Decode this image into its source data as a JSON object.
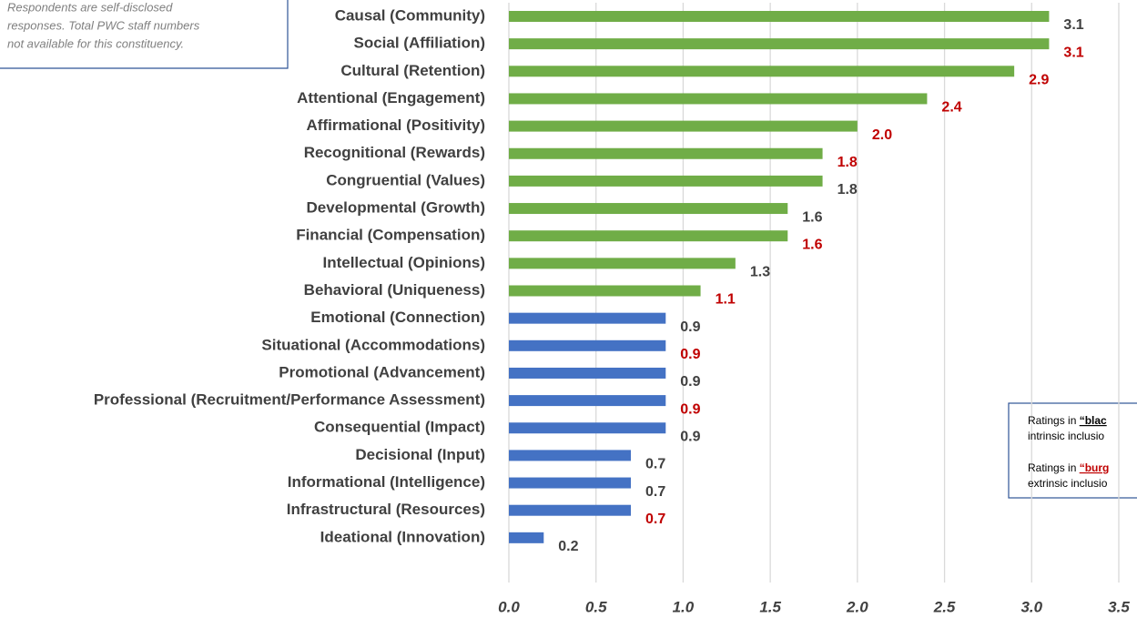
{
  "chart_data": {
    "type": "barh",
    "note": [
      "Respondents are self-disclosed",
      "responses. Total PWC staff numbers",
      "not available for this constituency."
    ],
    "legend_box": [
      {
        "lead": "Ratings in ",
        "key": "“blac",
        "key_color": "#000000",
        "next": "intrinsic inclusio"
      },
      {
        "lead": "Ratings in ",
        "key": "“burg",
        "key_color": "#c00000",
        "next": "extrinsic inclusio"
      }
    ],
    "categories": [
      "Causal (Community)",
      "Social (Affiliation)",
      "Cultural (Retention)",
      "Attentional (Engagement)",
      "Affirmational (Positivity)",
      "Recognitional (Rewards)",
      "Congruential (Values)",
      "Developmental (Growth)",
      "Financial (Compensation)",
      "Intellectual (Opinions)",
      "Behavioral (Uniqueness)",
      "Emotional (Connection)",
      "Situational (Accommodations)",
      "Promotional (Advancement)",
      "Professional (Recruitment/Performance Assessment)",
      "Consequential (Impact)",
      "Decisional (Input)",
      "Informational (Intelligence)",
      "Infrastructural (Resources)",
      "Ideational (Innovation)"
    ],
    "values": [
      3.1,
      3.1,
      2.9,
      2.4,
      2.0,
      1.8,
      1.8,
      1.6,
      1.6,
      1.3,
      1.1,
      0.9,
      0.9,
      0.9,
      0.9,
      0.9,
      0.7,
      0.7,
      0.7,
      0.2
    ],
    "value_labels": [
      "3.1",
      "3.1",
      "2.9",
      "2.4",
      "2.0",
      "1.8",
      "1.8",
      "1.6",
      "1.6",
      "1.3",
      "1.1",
      "0.9",
      "0.9",
      "0.9",
      "0.9",
      "0.9",
      "0.7",
      "0.7",
      "0.7",
      "0.2"
    ],
    "colors": [
      "#70ad47",
      "#70ad47",
      "#70ad47",
      "#70ad47",
      "#70ad47",
      "#70ad47",
      "#70ad47",
      "#70ad47",
      "#70ad47",
      "#70ad47",
      "#70ad47",
      "#4472c4",
      "#4472c4",
      "#4472c4",
      "#4472c4",
      "#4472c4",
      "#4472c4",
      "#4472c4",
      "#4472c4",
      "#4472c4"
    ],
    "label_colors": [
      "#404040",
      "#c00000",
      "#c00000",
      "#c00000",
      "#c00000",
      "#c00000",
      "#404040",
      "#404040",
      "#c00000",
      "#404040",
      "#c00000",
      "#404040",
      "#c00000",
      "#404040",
      "#c00000",
      "#404040",
      "#404040",
      "#404040",
      "#c00000",
      "#404040"
    ],
    "xlim": [
      0,
      3.5
    ],
    "xticks": [
      {
        "value": 0,
        "label": "0.0"
      },
      {
        "value": 0.5,
        "label": "0.5"
      },
      {
        "value": 1,
        "label": "1.0"
      },
      {
        "value": 1.5,
        "label": "1.5"
      },
      {
        "value": 2,
        "label": "2.0"
      },
      {
        "value": 2.5,
        "label": "2.5"
      },
      {
        "value": 3,
        "label": "3.0"
      },
      {
        "value": 3.5,
        "label": "3.5"
      }
    ],
    "grid": true
  }
}
